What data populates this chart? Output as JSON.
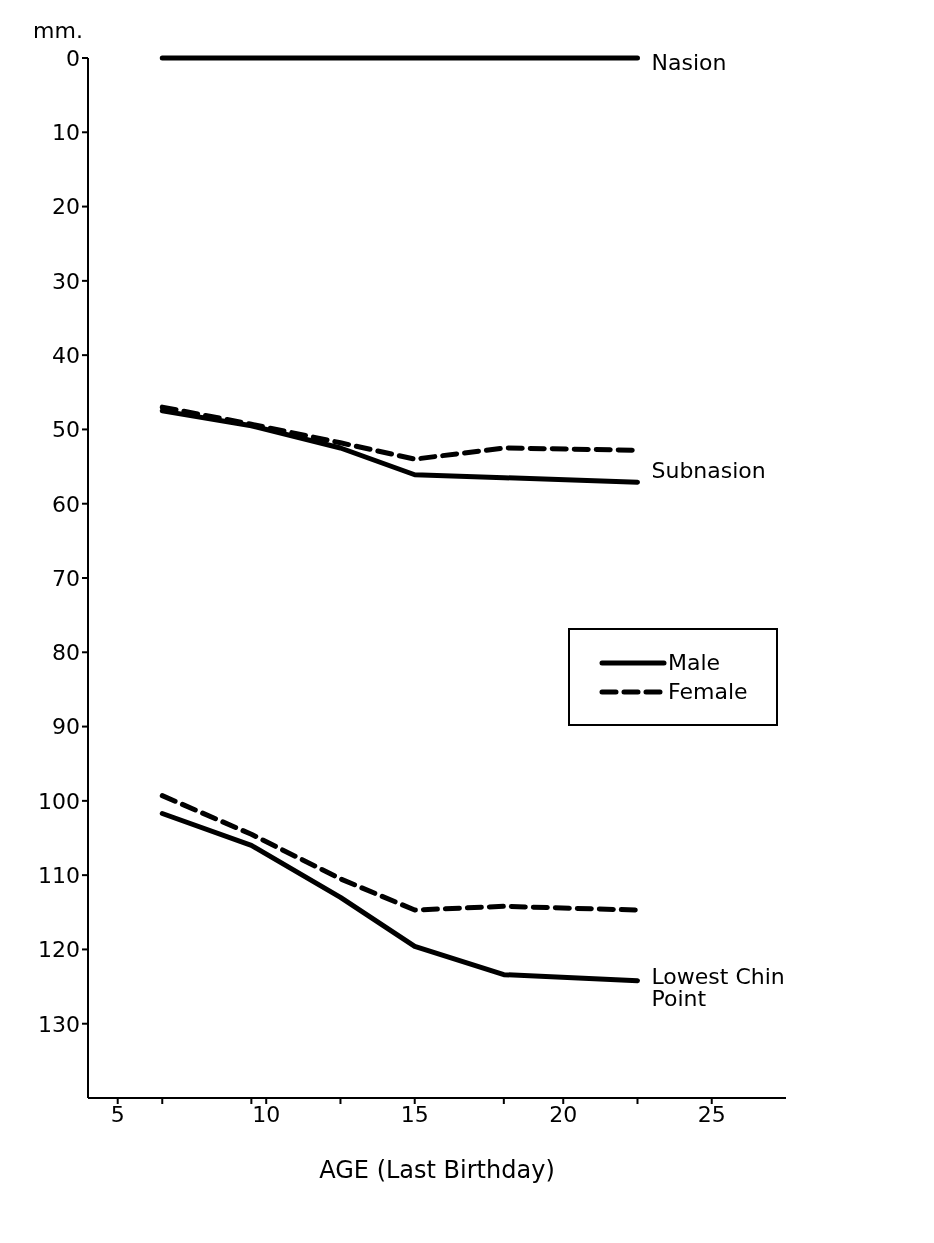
{
  "chart_data": {
    "type": "line",
    "ylabel": "mm.",
    "xlabel": "AGE (Last Birthday)",
    "xlim": [
      4,
      27.5
    ],
    "xticks": [
      5,
      {
        "value": 6.5,
        "label": null
      },
      {
        "value": 9.5,
        "label": null
      },
      10,
      {
        "value": 12.5,
        "label": null
      },
      15,
      {
        "value": 18,
        "label": null
      },
      20,
      {
        "value": 22.5,
        "label": null
      },
      25
    ],
    "ylim": [
      140,
      0
    ],
    "yticks": [
      0,
      10,
      20,
      30,
      40,
      50,
      60,
      70,
      80,
      90,
      100,
      110,
      120,
      130
    ],
    "grid": false,
    "legend": "right",
    "marker": "none",
    "series": [
      {
        "name": "Male",
        "color": "#000000",
        "line_style": "solid",
        "x": [
          6.5,
          9.5,
          12.5,
          15,
          18,
          22.5
        ],
        "values": [
          0,
          0,
          0,
          0,
          0,
          0
        ]
      },
      {
        "color": "#000000",
        "line_style": "solid",
        "x": [
          6.5,
          9.5,
          12.5,
          15,
          18,
          22.5
        ],
        "values": [
          47.5,
          49.5,
          52.5,
          56.1,
          56.5,
          57.1
        ]
      },
      {
        "color": "#000000",
        "line_style": "solid",
        "x": [
          6.5,
          9.5,
          12.5,
          15,
          18,
          22.5
        ],
        "values": [
          101.7,
          106,
          113,
          119.6,
          123.4,
          124.2
        ]
      },
      {
        "name": "Female",
        "color": "#000000",
        "line_style": "dashed",
        "x": [
          6.5,
          9.5,
          12.5,
          15,
          18,
          22.5
        ],
        "values": [
          47,
          49.3,
          51.8,
          54,
          52.5,
          52.8
        ]
      },
      {
        "color": "#000000",
        "line_style": "dashed",
        "x": [
          6.5,
          9.5,
          12.5,
          15,
          18,
          22.5
        ],
        "values": [
          99.3,
          104.5,
          110.5,
          114.7,
          114.2,
          114.7
        ]
      }
    ],
    "annotations": [
      "Nasion",
      "Subnasion",
      "Lowest Chin Point"
    ]
  }
}
